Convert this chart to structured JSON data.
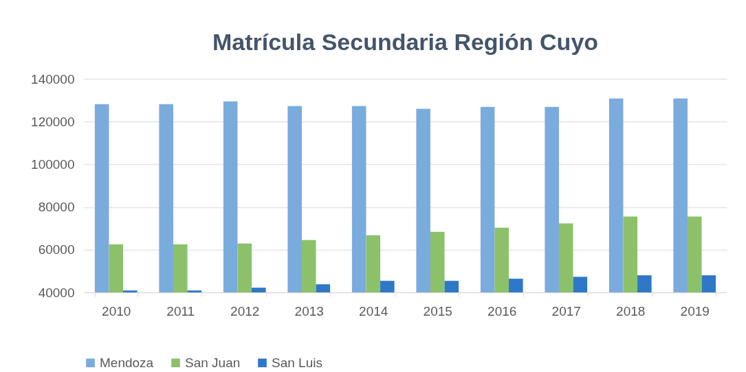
{
  "chart_data": {
    "type": "bar",
    "title": "Matrícula Secundaria Región Cuyo",
    "categories": [
      "2010",
      "2011",
      "2012",
      "2013",
      "2014",
      "2015",
      "2016",
      "2017",
      "2018",
      "2019"
    ],
    "series": [
      {
        "name": "Mendoza",
        "color": "#7aabdd",
        "values": [
          128200,
          128200,
          129500,
          127300,
          127300,
          126000,
          126900,
          126900,
          130800,
          130800
        ]
      },
      {
        "name": "San Juan",
        "color": "#8cc16a",
        "values": [
          62500,
          62500,
          62900,
          64500,
          66800,
          68400,
          70300,
          72300,
          75500,
          75500
        ]
      },
      {
        "name": "San Luis",
        "color": "#2e78c7",
        "values": [
          40900,
          40900,
          42200,
          43800,
          45400,
          45400,
          46400,
          47300,
          48000,
          48000
        ]
      }
    ],
    "ylim": [
      40000,
      140000
    ],
    "yticks": [
      40000,
      60000,
      80000,
      100000,
      120000,
      140000
    ],
    "grid": "y",
    "legend": "bottom"
  }
}
